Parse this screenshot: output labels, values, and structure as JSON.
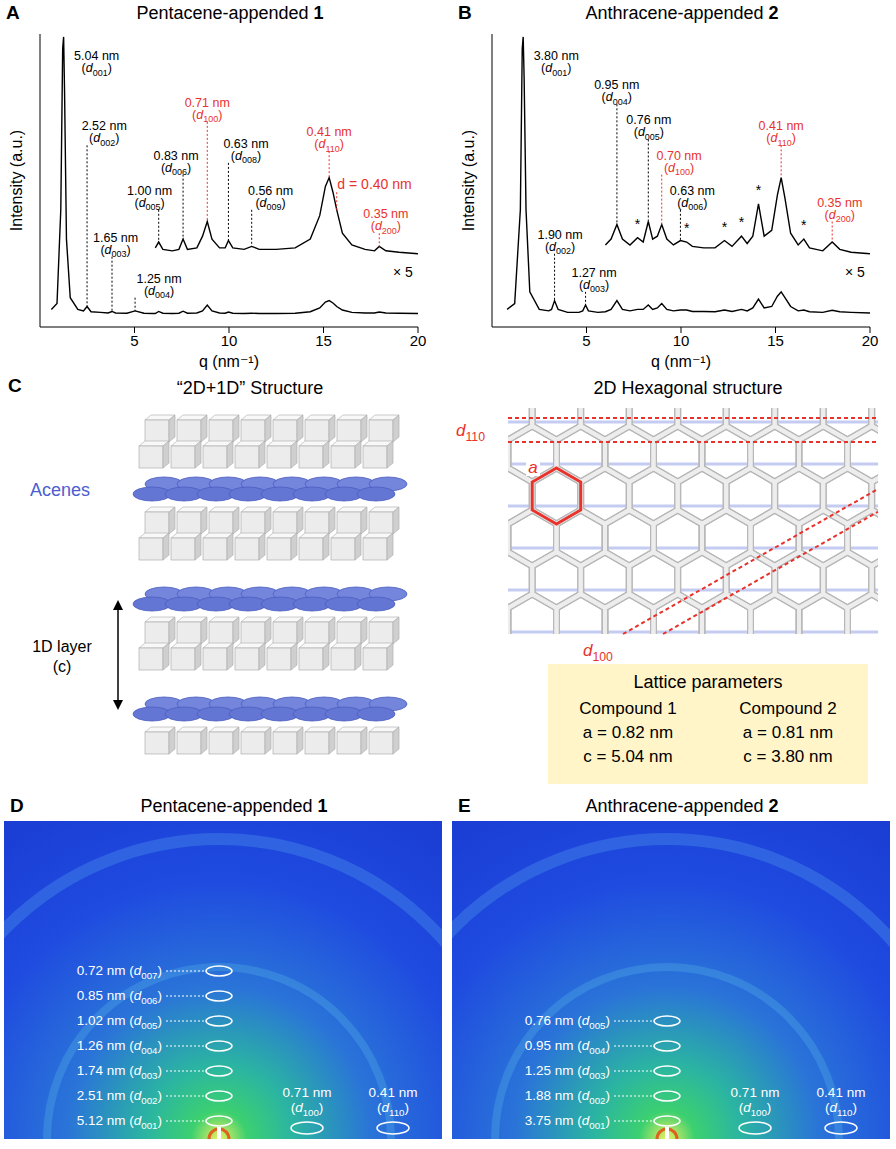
{
  "chart_data": [
    {
      "type": "line",
      "panel": "A",
      "title": "Pentacene-appended 1",
      "x_label": "q (nm⁻¹)",
      "y_label": "Intensity (a.u.)",
      "tick_labels": "x",
      "xlim": [
        0,
        20
      ],
      "xticks": [
        5,
        10,
        15,
        20
      ],
      "ylim": [
        0,
        100
      ],
      "x": [
        0.6,
        0.9,
        1.1,
        1.2,
        1.25,
        1.3,
        1.4,
        1.6,
        2.0,
        2.3,
        2.49,
        2.7,
        3.2,
        3.6,
        3.81,
        4.0,
        4.6,
        5.03,
        5.5,
        6.0,
        6.1,
        6.28,
        6.5,
        7.0,
        7.35,
        7.57,
        7.8,
        8.3,
        8.6,
        8.85,
        9.1,
        9.5,
        9.8,
        9.97,
        10.2,
        10.8,
        11.2,
        11.6,
        12.5,
        13.5,
        14.3,
        14.8,
        15.1,
        15.3,
        15.5,
        15.7,
        16.0,
        16.5,
        17.2,
        17.7,
        17.95,
        18.3,
        19.0,
        20.0
      ],
      "series": [
        {
          "color": "#000000",
          "values": [
            6,
            8,
            40,
            95,
            99,
            80,
            30,
            10,
            6,
            5.5,
            7,
            5.2,
            5,
            4.8,
            5.3,
            4.8,
            4.7,
            5.5,
            4.7,
            4.6,
            4.6,
            5.3,
            4.7,
            4.6,
            4.7,
            5.4,
            4.7,
            4.8,
            5.5,
            7.5,
            5.5,
            4.8,
            4.7,
            5.1,
            4.7,
            4.6,
            4.7,
            4.6,
            4.6,
            4.7,
            5.2,
            6.5,
            8.5,
            9,
            8.2,
            7,
            5.8,
            5,
            4.8,
            4.8,
            5.1,
            4.8,
            4.7,
            4.6
          ]
        },
        {
          "color": "#000000",
          "values": [
            null,
            null,
            null,
            null,
            null,
            null,
            null,
            null,
            null,
            null,
            null,
            null,
            null,
            null,
            null,
            null,
            null,
            null,
            null,
            null,
            27,
            29,
            26.5,
            26,
            26.5,
            30,
            26.5,
            27,
            31,
            36,
            30,
            27,
            27,
            29.5,
            27,
            26.5,
            27.5,
            26.5,
            26.5,
            27,
            30,
            38,
            48,
            51,
            46,
            40,
            32,
            28,
            26.5,
            26,
            27.5,
            26,
            25.5,
            25
          ]
        }
      ],
      "annotations": [
        {
          "text": "5.04 nm",
          "sub": "(d001)",
          "at": [
            3.0,
            86
          ],
          "point": null,
          "color": "#000000"
        },
        {
          "text": "2.52 nm",
          "sub": "(d002)",
          "at": [
            3.4,
            62
          ],
          "point": [
            2.49,
            7
          ],
          "color": "#000000"
        },
        {
          "text": "1.65 nm",
          "sub": "(d003)",
          "at": [
            4.0,
            24
          ],
          "point": [
            3.81,
            5.3
          ],
          "color": "#000000"
        },
        {
          "text": "1.25 nm",
          "sub": "(d004)",
          "at": [
            6.3,
            10
          ],
          "point": [
            5.03,
            5.5
          ],
          "color": "#000000"
        },
        {
          "text": "1.00 nm",
          "sub": "(d005)",
          "at": [
            5.8,
            40
          ],
          "point": [
            6.28,
            29
          ],
          "color": "#000000"
        },
        {
          "text": "0.83 nm",
          "sub": "(d006)",
          "at": [
            7.2,
            52
          ],
          "point": [
            7.57,
            30
          ],
          "color": "#000000"
        },
        {
          "text": "0.71 nm",
          "sub": "(d100)",
          "at": [
            8.85,
            70
          ],
          "point": [
            8.85,
            36
          ],
          "color": "#e8322b"
        },
        {
          "text": "0.63 nm",
          "sub": "(d008)",
          "at": [
            10.9,
            56
          ],
          "point": [
            9.97,
            29.5
          ],
          "color": "#000000"
        },
        {
          "text": "0.56 nm",
          "sub": "(d009)",
          "at": [
            12.2,
            40
          ],
          "point": [
            11.2,
            27.5
          ],
          "color": "#000000"
        },
        {
          "text": "0.41 nm",
          "sub": "(d110)",
          "at": [
            15.3,
            60
          ],
          "point": [
            15.3,
            51
          ],
          "color": "#e8322b"
        },
        {
          "text": "d = 0.40 nm",
          "at": [
            17.7,
            46
          ],
          "point": [
            15.7,
            40
          ],
          "color": "#e8322b"
        },
        {
          "text": "0.35 nm",
          "sub": "(d200)",
          "at": [
            18.3,
            32
          ],
          "point": [
            17.95,
            27.5
          ],
          "color": "#e8322b"
        },
        {
          "text": "× 5",
          "at": [
            19.2,
            16
          ],
          "point": null,
          "color": "#000000"
        }
      ]
    },
    {
      "type": "line",
      "panel": "B",
      "title": "Anthracene-appended 2",
      "x_label": "q (nm⁻¹)",
      "y_label": "Intensity (a.u.)",
      "tick_labels": "x",
      "xlim": [
        0,
        20
      ],
      "xticks": [
        5,
        10,
        15,
        20
      ],
      "ylim": [
        0,
        100
      ],
      "x": [
        0.8,
        1.2,
        1.5,
        1.6,
        1.65,
        1.7,
        1.8,
        2.0,
        2.5,
        3.0,
        3.15,
        3.31,
        3.5,
        4.0,
        4.6,
        4.8,
        4.95,
        5.1,
        5.6,
        6.0,
        6.3,
        6.61,
        6.9,
        7.3,
        7.7,
        8.0,
        8.27,
        8.5,
        8.75,
        8.98,
        9.25,
        9.6,
        9.97,
        10.3,
        10.6,
        11.2,
        11.8,
        12.3,
        12.7,
        13.2,
        13.5,
        13.8,
        14.1,
        14.4,
        14.8,
        15.1,
        15.3,
        15.5,
        15.8,
        16.2,
        16.5,
        16.8,
        17.5,
        18.0,
        18.4,
        19.0,
        20.0
      ],
      "series": [
        {
          "color": "#000000",
          "values": [
            6,
            8,
            40,
            95,
            99,
            85,
            40,
            12,
            6,
            5.5,
            6,
            9,
            6,
            5,
            5,
            5.5,
            7.5,
            5.5,
            5,
            5.2,
            6,
            9,
            6,
            5.5,
            6,
            6,
            7.5,
            6,
            6.5,
            8,
            6,
            5.5,
            5.8,
            5.8,
            5.3,
            5.3,
            5.2,
            5.8,
            5.3,
            6,
            5.5,
            6.5,
            9.5,
            6.5,
            7,
            10.5,
            12,
            10,
            7,
            5.5,
            5.8,
            5.2,
            5,
            5.7,
            5.2,
            5,
            4.8
          ]
        },
        {
          "color": "#000000",
          "values": [
            null,
            null,
            null,
            null,
            null,
            null,
            null,
            null,
            null,
            null,
            null,
            null,
            null,
            null,
            null,
            null,
            null,
            null,
            null,
            28,
            30,
            35,
            30,
            28,
            30.5,
            29,
            36,
            30,
            31,
            35,
            30,
            28,
            29.5,
            29,
            27.5,
            27,
            27,
            29.5,
            27.5,
            31,
            28.5,
            31,
            42,
            31,
            33,
            45,
            51,
            44,
            32,
            28,
            30,
            27,
            26,
            29,
            26.5,
            25.5,
            25
          ]
        }
      ],
      "annotations": [
        {
          "text": "3.80 nm",
          "sub": "(d001)",
          "at": [
            3.4,
            86
          ],
          "point": null,
          "color": "#000000"
        },
        {
          "text": "1.90 nm",
          "sub": "(d002)",
          "at": [
            3.6,
            25
          ],
          "point": [
            3.31,
            9
          ],
          "color": "#000000"
        },
        {
          "text": "1.27 nm",
          "sub": "(d003)",
          "at": [
            5.4,
            12
          ],
          "point": [
            4.95,
            7.5
          ],
          "color": "#000000"
        },
        {
          "text": "0.95 nm",
          "sub": "(d004)",
          "at": [
            6.6,
            76
          ],
          "point": [
            6.61,
            35
          ],
          "color": "#000000"
        },
        {
          "text": "0.76 nm",
          "sub": "(d005)",
          "at": [
            8.3,
            64
          ],
          "point": [
            8.27,
            36
          ],
          "color": "#000000"
        },
        {
          "text": "0.70 nm",
          "sub": "(d100)",
          "at": [
            9.9,
            52
          ],
          "point": [
            8.98,
            35
          ],
          "color": "#e8322b"
        },
        {
          "text": "0.63 nm",
          "sub": "(d006)",
          "at": [
            10.6,
            40
          ],
          "point": [
            9.97,
            29.5
          ],
          "color": "#000000"
        },
        {
          "text": "0.41 nm",
          "sub": "(d110)",
          "at": [
            15.3,
            62
          ],
          "point": [
            15.3,
            51
          ],
          "color": "#e8322b"
        },
        {
          "text": "0.35 nm",
          "sub": "(d200)",
          "at": [
            18.4,
            36
          ],
          "point": [
            18.0,
            29
          ],
          "color": "#e8322b"
        },
        {
          "text": "*",
          "at": [
            7.7,
            32.5
          ],
          "point": null,
          "color": "#000000"
        },
        {
          "text": "*",
          "at": [
            10.3,
            31
          ],
          "point": null,
          "color": "#000000"
        },
        {
          "text": "*",
          "at": [
            12.3,
            31.5
          ],
          "point": null,
          "color": "#000000"
        },
        {
          "text": "*",
          "at": [
            13.2,
            33
          ],
          "point": null,
          "color": "#000000"
        },
        {
          "text": "*",
          "at": [
            14.1,
            44
          ],
          "point": null,
          "color": "#000000"
        },
        {
          "text": "*",
          "at": [
            16.5,
            32
          ],
          "point": null,
          "color": "#000000"
        },
        {
          "text": "× 5",
          "at": [
            19.2,
            16
          ],
          "point": null,
          "color": "#000000"
        }
      ]
    }
  ],
  "panel_c": {
    "panel": "C",
    "left_title": "“2D+1D” Structure",
    "acenes_label": "Acenes",
    "layer_label": "1D layer",
    "layer_axis": "(c)",
    "right_title": "2D Hexagonal structure",
    "hex_labels": {
      "a": "a",
      "d110": "d110",
      "d100": "d100"
    },
    "lattice": {
      "title": "Lattice parameters",
      "columns": [
        {
          "name": "Compound 1",
          "a": "a = 0.82 nm",
          "c": "c = 5.04 nm"
        },
        {
          "name": "Compound 2",
          "a": "a = 0.81 nm",
          "c": "c = 3.80 nm"
        }
      ]
    }
  },
  "panel_d": {
    "panel": "D",
    "title": "Pentacene-appended 1",
    "vertical_labels": [
      "0.72 nm (d007)",
      "0.85 nm (d006)",
      "1.02 nm (d005)",
      "1.26 nm (d004)",
      "1.74 nm (d003)",
      "2.51 nm (d002)",
      "5.12 nm (d001)"
    ],
    "horizontal_labels": [
      {
        "text": "0.71 nm",
        "sub": "(d100)"
      },
      {
        "text": "0.41 nm",
        "sub": "(d110)"
      }
    ]
  },
  "panel_e": {
    "panel": "E",
    "title": "Anthracene-appended 2",
    "vertical_labels": [
      "0.76 nm (d005)",
      "0.95 nm (d004)",
      "1.25 nm (d003)",
      "1.88 nm (d002)",
      "3.75 nm (d001)"
    ],
    "horizontal_labels": [
      {
        "text": "0.71 nm",
        "sub": "(d100)"
      },
      {
        "text": "0.41 nm",
        "sub": "(d110)"
      }
    ]
  }
}
